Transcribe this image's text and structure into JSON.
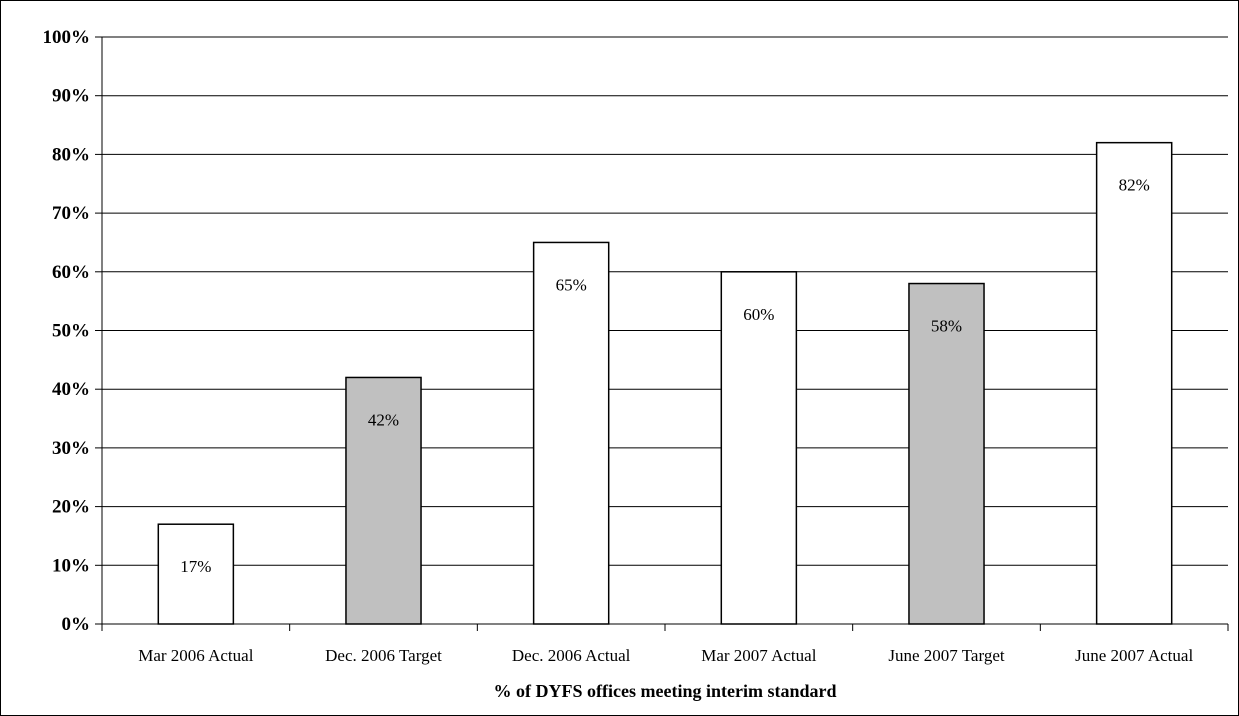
{
  "chart_data": {
    "type": "bar",
    "title": "",
    "xlabel": "% of DYFS offices meeting interim standard",
    "ylabel": "",
    "ylim": [
      0,
      100
    ],
    "y_ticks": [
      0,
      10,
      20,
      30,
      40,
      50,
      60,
      70,
      80,
      90,
      100
    ],
    "y_tick_labels": [
      "0%",
      "10%",
      "20%",
      "30%",
      "40%",
      "50%",
      "60%",
      "70%",
      "80%",
      "90%",
      "100%"
    ],
    "grid": true,
    "legend": "none",
    "categories": [
      "Mar 2006 Actual",
      "Dec. 2006 Target",
      "Dec. 2006 Actual",
      "Mar 2007 Actual",
      "June 2007 Target",
      "June 2007 Actual"
    ],
    "values": [
      17,
      42,
      65,
      60,
      58,
      82
    ],
    "data_labels": [
      "17%",
      "42%",
      "65%",
      "60%",
      "58%",
      "82%"
    ],
    "bar_kind": [
      "actual",
      "target",
      "actual",
      "actual",
      "target",
      "actual"
    ]
  },
  "colors": {
    "actual_fill": "#ffffff",
    "target_fill": "#c0c0c0",
    "bar_stroke": "#000000",
    "grid": "#000000",
    "background": "#ffffff"
  }
}
